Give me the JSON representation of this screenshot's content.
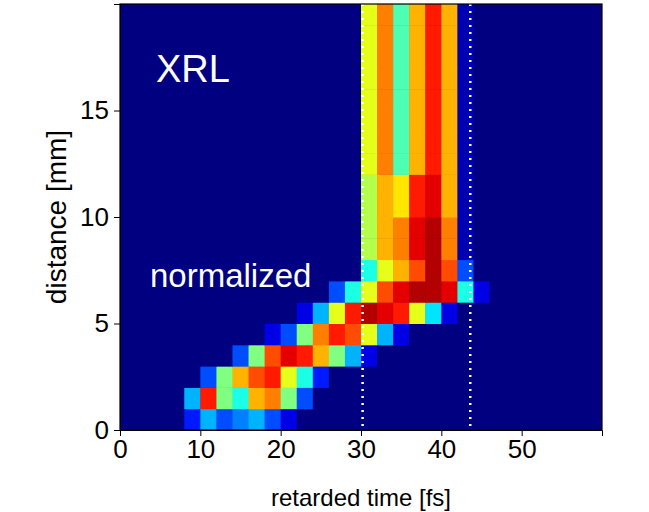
{
  "chart_data": {
    "type": "heatmap",
    "annotations": [
      "XRL",
      "normalized"
    ],
    "x_label": "retarded time [fs]",
    "y_label": "distance [mm]",
    "xlim": [
      0,
      60
    ],
    "ylim": [
      0,
      20
    ],
    "xticks": [
      0,
      10,
      20,
      30,
      40,
      50
    ],
    "yticks": [
      0,
      5,
      10,
      15
    ],
    "x_edges": [
      0,
      2,
      4,
      6,
      8,
      10,
      12,
      14,
      16,
      18,
      20,
      22,
      24,
      26,
      28,
      30,
      32,
      34,
      36,
      38,
      40,
      42,
      44,
      46,
      48,
      50,
      52,
      54,
      56,
      58,
      60
    ],
    "y_edges": [
      0,
      1,
      2,
      3,
      4,
      5,
      6,
      7,
      8,
      9,
      10,
      11,
      12,
      13,
      14,
      15,
      16,
      17,
      18,
      19,
      20
    ],
    "zlim": [
      0,
      1
    ],
    "vlines": [
      30.2,
      43.6
    ],
    "values": [
      [
        0,
        0,
        0,
        0,
        0.15,
        0.3,
        0.2,
        0.25,
        0.3,
        0.2,
        0.1,
        0,
        0,
        0,
        0,
        0,
        0,
        0,
        0,
        0,
        0,
        0,
        0,
        0,
        0,
        0,
        0,
        0,
        0,
        0
      ],
      [
        0,
        0,
        0,
        0,
        0.3,
        0.85,
        0.5,
        0.4,
        0.7,
        0.75,
        0.5,
        0.2,
        0,
        0,
        0,
        0,
        0,
        0,
        0,
        0,
        0,
        0,
        0,
        0,
        0,
        0,
        0,
        0,
        0,
        0
      ],
      [
        0,
        0,
        0,
        0,
        0,
        0.2,
        0.5,
        0.7,
        0.8,
        0.85,
        0.6,
        0.4,
        0.15,
        0,
        0,
        0,
        0,
        0,
        0,
        0,
        0,
        0,
        0,
        0,
        0,
        0,
        0,
        0,
        0,
        0
      ],
      [
        0,
        0,
        0,
        0,
        0,
        0,
        0,
        0.2,
        0.5,
        0.8,
        0.9,
        0.85,
        0.7,
        0.5,
        0.3,
        0.1,
        0,
        0,
        0,
        0,
        0,
        0,
        0,
        0,
        0,
        0,
        0,
        0,
        0,
        0
      ],
      [
        0,
        0,
        0,
        0,
        0,
        0,
        0,
        0,
        0,
        0.1,
        0.2,
        0.5,
        0.75,
        0.85,
        0.8,
        0.6,
        0.3,
        0.1,
        0,
        0,
        0,
        0,
        0,
        0,
        0,
        0,
        0,
        0,
        0,
        0
      ],
      [
        0,
        0,
        0,
        0,
        0,
        0,
        0,
        0,
        0,
        0,
        0,
        0.1,
        0.3,
        0.6,
        0.85,
        0.95,
        0.9,
        0.85,
        0.6,
        0.35,
        0.1,
        0,
        0,
        0,
        0,
        0,
        0,
        0,
        0,
        0
      ],
      [
        0,
        0,
        0,
        0,
        0,
        0,
        0,
        0,
        0,
        0,
        0,
        0,
        0,
        0.2,
        0.4,
        0.6,
        0.8,
        0.9,
        0.95,
        0.95,
        0.9,
        0.4,
        0.1,
        0,
        0,
        0,
        0,
        0,
        0,
        0
      ],
      [
        0,
        0,
        0,
        0,
        0,
        0,
        0,
        0,
        0,
        0,
        0,
        0,
        0,
        0,
        0,
        0.4,
        0.6,
        0.7,
        0.8,
        0.95,
        0.8,
        0.2,
        0,
        0,
        0,
        0,
        0,
        0,
        0,
        0
      ],
      [
        0,
        0,
        0,
        0,
        0,
        0,
        0,
        0,
        0,
        0,
        0,
        0,
        0,
        0,
        0,
        0.55,
        0.7,
        0.75,
        0.9,
        0.95,
        0.75,
        0.05,
        0,
        0,
        0,
        0,
        0,
        0,
        0,
        0
      ],
      [
        0,
        0,
        0,
        0,
        0,
        0,
        0,
        0,
        0,
        0,
        0,
        0,
        0,
        0,
        0,
        0.55,
        0.7,
        0.75,
        0.9,
        0.95,
        0.75,
        0.05,
        0,
        0,
        0,
        0,
        0,
        0,
        0,
        0
      ],
      [
        0,
        0,
        0,
        0,
        0,
        0,
        0,
        0,
        0,
        0,
        0,
        0,
        0,
        0,
        0,
        0.55,
        0.7,
        0.65,
        0.85,
        0.9,
        0.7,
        0.05,
        0,
        0,
        0,
        0,
        0,
        0,
        0,
        0
      ],
      [
        0,
        0,
        0,
        0,
        0,
        0,
        0,
        0,
        0,
        0,
        0,
        0,
        0,
        0,
        0,
        0.55,
        0.7,
        0.65,
        0.85,
        0.9,
        0.7,
        0.05,
        0,
        0,
        0,
        0,
        0,
        0,
        0,
        0
      ],
      [
        0,
        0,
        0,
        0,
        0,
        0,
        0,
        0,
        0,
        0,
        0,
        0,
        0,
        0,
        0,
        0.6,
        0.75,
        0.45,
        0.7,
        0.85,
        0.7,
        0.05,
        0,
        0,
        0,
        0,
        0,
        0,
        0,
        0
      ],
      [
        0,
        0,
        0,
        0,
        0,
        0,
        0,
        0,
        0,
        0,
        0,
        0,
        0,
        0,
        0,
        0.6,
        0.75,
        0.45,
        0.7,
        0.85,
        0.7,
        0.05,
        0,
        0,
        0,
        0,
        0,
        0,
        0,
        0
      ],
      [
        0,
        0,
        0,
        0,
        0,
        0,
        0,
        0,
        0,
        0,
        0,
        0,
        0,
        0,
        0,
        0.6,
        0.75,
        0.45,
        0.7,
        0.85,
        0.7,
        0.05,
        0,
        0,
        0,
        0,
        0,
        0,
        0,
        0
      ],
      [
        0,
        0,
        0,
        0,
        0,
        0,
        0,
        0,
        0,
        0,
        0,
        0,
        0,
        0,
        0,
        0.6,
        0.75,
        0.45,
        0.7,
        0.85,
        0.7,
        0.05,
        0,
        0,
        0,
        0,
        0,
        0,
        0,
        0
      ],
      [
        0,
        0,
        0,
        0,
        0,
        0,
        0,
        0,
        0,
        0,
        0,
        0,
        0,
        0,
        0,
        0.6,
        0.75,
        0.45,
        0.7,
        0.85,
        0.7,
        0.05,
        0,
        0,
        0,
        0,
        0,
        0,
        0,
        0
      ],
      [
        0,
        0,
        0,
        0,
        0,
        0,
        0,
        0,
        0,
        0,
        0,
        0,
        0,
        0,
        0,
        0.6,
        0.75,
        0.45,
        0.7,
        0.85,
        0.7,
        0.05,
        0,
        0,
        0,
        0,
        0,
        0,
        0,
        0
      ],
      [
        0,
        0,
        0,
        0,
        0,
        0,
        0,
        0,
        0,
        0,
        0,
        0,
        0,
        0,
        0,
        0.6,
        0.75,
        0.45,
        0.7,
        0.85,
        0.7,
        0.05,
        0,
        0,
        0,
        0,
        0,
        0,
        0,
        0
      ],
      [
        0,
        0,
        0,
        0,
        0,
        0,
        0,
        0,
        0,
        0,
        0,
        0,
        0,
        0,
        0,
        0.6,
        0.75,
        0.45,
        0.7,
        0.85,
        0.7,
        0.05,
        0,
        0,
        0,
        0,
        0,
        0,
        0,
        0
      ]
    ]
  }
}
